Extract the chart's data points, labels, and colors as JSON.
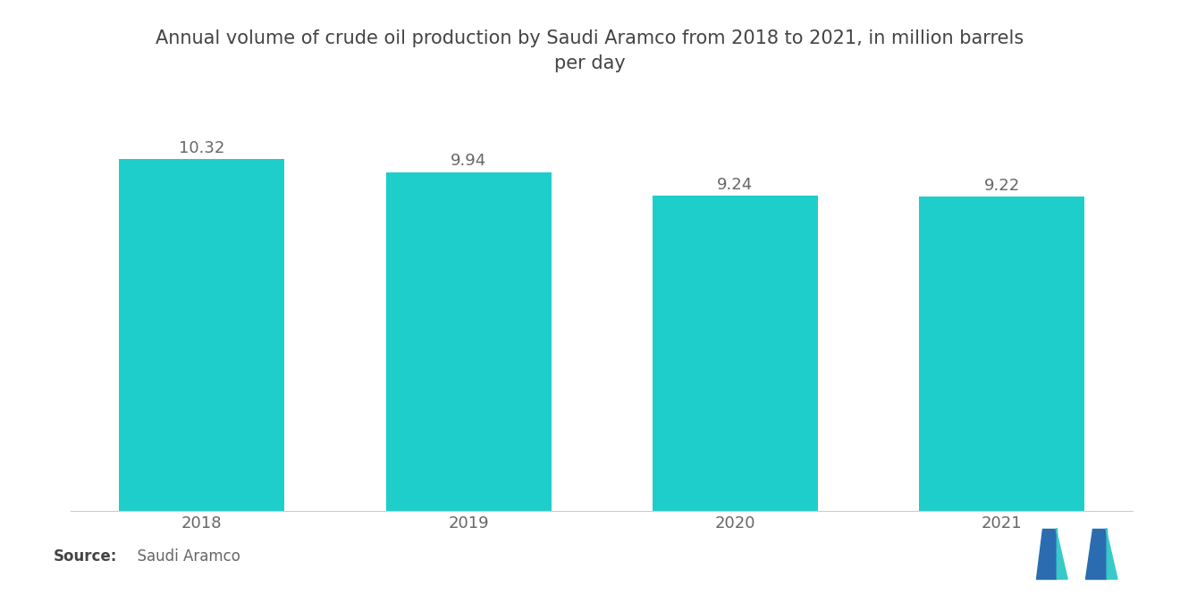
{
  "title": "Annual volume of crude oil production by Saudi Aramco from 2018 to 2021, in million barrels\nper day",
  "categories": [
    "2018",
    "2019",
    "2020",
    "2021"
  ],
  "values": [
    10.32,
    9.94,
    9.24,
    9.22
  ],
  "bar_color": "#1ECECA",
  "background_color": "#ffffff",
  "source_label": "Source:",
  "source_text": "  Saudi Aramco",
  "title_fontsize": 15,
  "label_fontsize": 13,
  "value_fontsize": 13,
  "source_fontsize": 12,
  "ylim": [
    0,
    11.5
  ],
  "bar_width": 0.62,
  "logo_blue": "#2B6CB0",
  "logo_teal": "#38C9C9"
}
